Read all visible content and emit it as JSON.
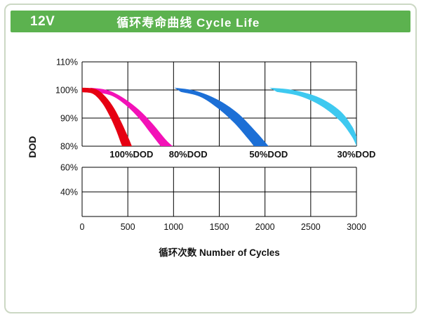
{
  "frame": {
    "border_color": "#ccd8c4",
    "background": "#ffffff"
  },
  "header": {
    "model": "12V",
    "title": "循环寿命曲线 Cycle Life",
    "background": "#5cb24f",
    "text_color": "#ffffff"
  },
  "chart_data": {
    "type": "area",
    "title": "循环寿命曲线 Cycle Life",
    "xlabel": "循环次数  Number of Cycles",
    "ylabel": "DOD",
    "x_ticks": [
      0,
      500,
      1000,
      1500,
      2000,
      2500,
      3000
    ],
    "x_max": 3000,
    "y_upper_ticks": [
      110,
      100,
      90,
      80
    ],
    "y_lower_ticks": [
      60,
      40
    ],
    "y_lower_baseline": 20,
    "grid": true,
    "legend_position": "between-grids",
    "series": [
      {
        "name": "100%DOD",
        "color": "#e60012",
        "label_x": 540,
        "upper": [
          [
            0,
            100.8
          ],
          [
            150,
            100.3
          ],
          [
            260,
            97.5
          ],
          [
            350,
            93.5
          ],
          [
            430,
            88.5
          ],
          [
            500,
            83.5
          ],
          [
            545,
            80
          ]
        ],
        "lower": [
          [
            0,
            99.2
          ],
          [
            120,
            98.6
          ],
          [
            220,
            95.3
          ],
          [
            300,
            90.8
          ],
          [
            370,
            85.8
          ],
          [
            425,
            81.0
          ],
          [
            440,
            80
          ]
        ]
      },
      {
        "name": "80%DOD",
        "color": "#f311b7",
        "label_x": 1160,
        "upper": [
          [
            90,
            100.8
          ],
          [
            280,
            99.9
          ],
          [
            450,
            97.2
          ],
          [
            620,
            93.0
          ],
          [
            770,
            88.0
          ],
          [
            910,
            82.5
          ],
          [
            990,
            80
          ]
        ],
        "lower": [
          [
            150,
            99.2
          ],
          [
            320,
            98.0
          ],
          [
            470,
            94.8
          ],
          [
            620,
            90.0
          ],
          [
            740,
            85.0
          ],
          [
            840,
            80.8
          ],
          [
            860,
            80
          ]
        ]
      },
      {
        "name": "50%DOD",
        "color": "#1c6fd6",
        "label_x": 2040,
        "upper": [
          [
            1010,
            100.8
          ],
          [
            1240,
            99.7
          ],
          [
            1480,
            96.6
          ],
          [
            1700,
            91.8
          ],
          [
            1900,
            85.2
          ],
          [
            2040,
            80
          ]
        ],
        "lower": [
          [
            1080,
            99.3
          ],
          [
            1290,
            97.6
          ],
          [
            1480,
            93.6
          ],
          [
            1660,
            88.4
          ],
          [
            1810,
            82.8
          ],
          [
            1880,
            80
          ]
        ]
      },
      {
        "name": "30%DOD",
        "color": "#3ec9f0",
        "label_x": 3000,
        "upper": [
          [
            2050,
            100.8
          ],
          [
            2320,
            99.9
          ],
          [
            2600,
            97.2
          ],
          [
            2820,
            92.6
          ],
          [
            2950,
            87.2
          ],
          [
            3000,
            83.6
          ]
        ],
        "lower": [
          [
            2130,
            99.3
          ],
          [
            2380,
            97.8
          ],
          [
            2620,
            94.2
          ],
          [
            2820,
            89.0
          ],
          [
            2950,
            83.4
          ],
          [
            3000,
            80
          ]
        ]
      }
    ]
  }
}
